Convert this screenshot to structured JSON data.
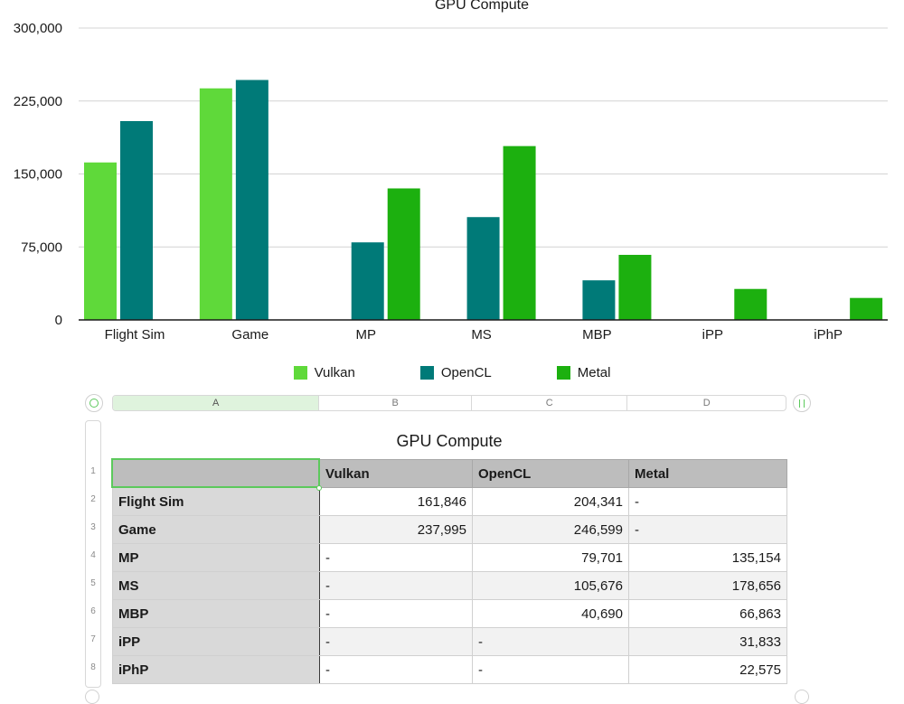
{
  "chart_data": {
    "type": "bar",
    "title": "GPU Compute",
    "categories": [
      "Flight Sim",
      "Game",
      "MP",
      "MS",
      "MBP",
      "iPP",
      "iPhP"
    ],
    "series": [
      {
        "name": "Vulkan",
        "color": "#5fd93a",
        "values": [
          161846,
          237995,
          null,
          null,
          null,
          null,
          null
        ]
      },
      {
        "name": "OpenCL",
        "color": "#007a78",
        "values": [
          204341,
          246599,
          79701,
          105676,
          40690,
          null,
          null
        ]
      },
      {
        "name": "Metal",
        "color": "#1cb00f",
        "values": [
          null,
          null,
          135154,
          178656,
          66863,
          31833,
          22575
        ]
      }
    ],
    "y_ticks": [
      "0",
      "75,000",
      "150,000",
      "225,000",
      "300,000"
    ],
    "ylim": [
      0,
      300000
    ],
    "grid": true,
    "legend": "bottom-center"
  },
  "table": {
    "column_letters": [
      "A",
      "B",
      "C",
      "D"
    ],
    "row_numbers": [
      "1",
      "2",
      "3",
      "4",
      "5",
      "6",
      "7",
      "8"
    ],
    "title": "GPU Compute",
    "header": [
      "",
      "Vulkan",
      "OpenCL",
      "Metal"
    ],
    "rows": [
      [
        "Flight Sim",
        "161,846",
        "204,341",
        "-"
      ],
      [
        "Game",
        "237,995",
        "246,599",
        "-"
      ],
      [
        "MP",
        "-",
        "79,701",
        "135,154"
      ],
      [
        "MS",
        "-",
        "105,676",
        "178,656"
      ],
      [
        "MBP",
        "-",
        "40,690",
        "66,863"
      ],
      [
        "iPP",
        "-",
        "-",
        "31,833"
      ],
      [
        "iPhP",
        "-",
        "-",
        "22,575"
      ]
    ]
  }
}
